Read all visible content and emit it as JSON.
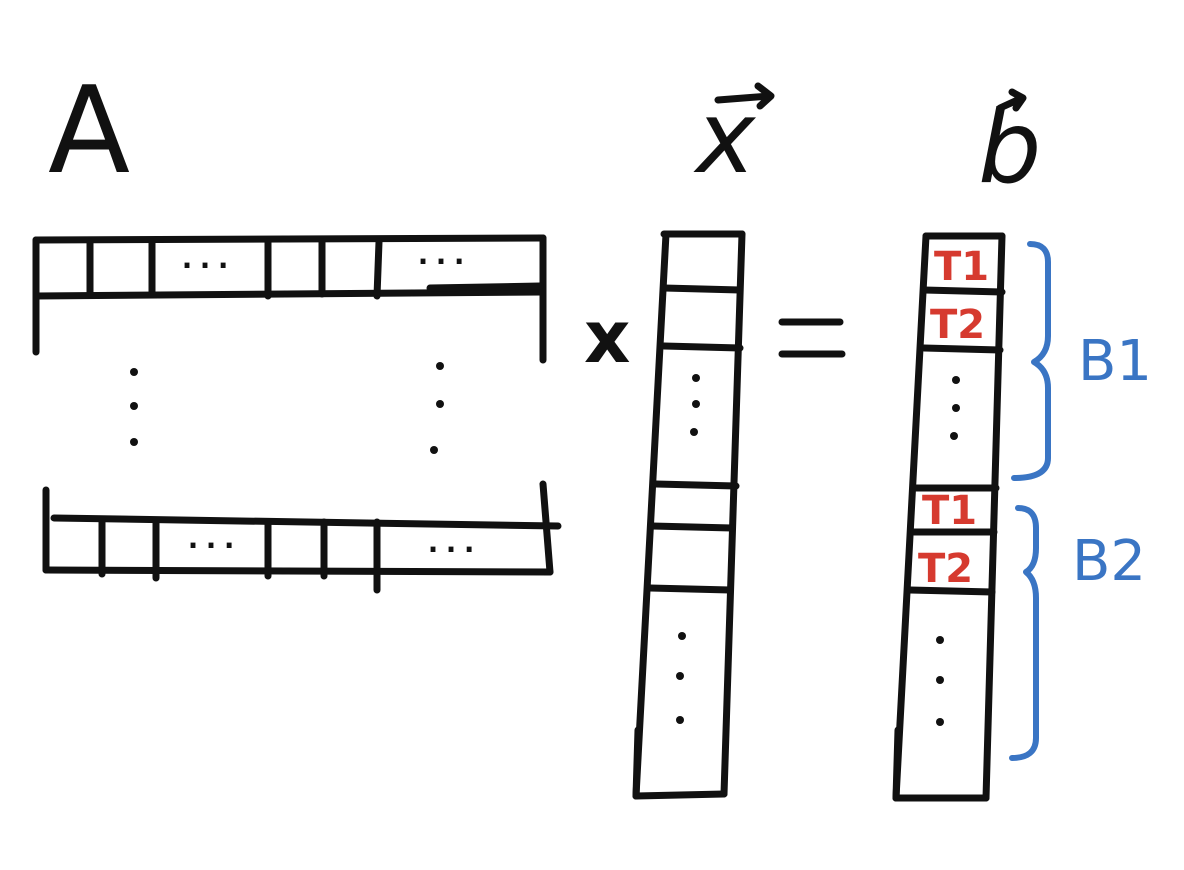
{
  "labels": {
    "matrix": "A",
    "vector_x": "x",
    "vector_b": "b",
    "multiply": "x",
    "cdots": "···",
    "t1": "T1",
    "t2": "T2",
    "b1": "B1",
    "b2": "B2"
  },
  "colors": {
    "ink": "#111111",
    "thread_label": "#d63a2f",
    "block_label": "#3a75c4"
  }
}
